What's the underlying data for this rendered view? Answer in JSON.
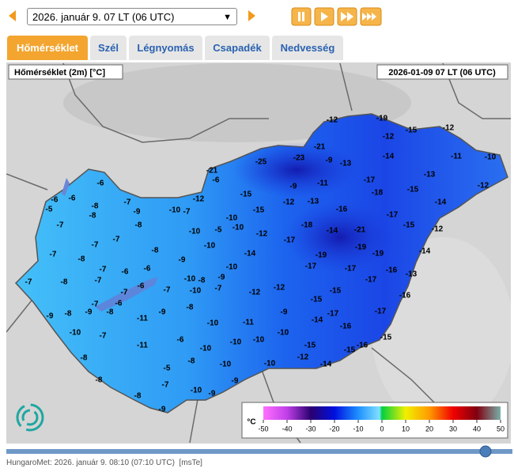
{
  "header": {
    "date_select": "2026. január 9. 07 LT (06  UTC)"
  },
  "tabs": [
    "Hőmérséklet",
    "Szél",
    "Légnyomás",
    "Csapadék",
    "Nedvesség"
  ],
  "map": {
    "parameter_label": "Hőmérséklet (2m) [°C]",
    "time_label": "2026-01-09 07 LT (06 UTC)",
    "temperature_labels": [
      -12,
      -19,
      -15,
      -12,
      -12,
      -21,
      -11,
      -10,
      -14,
      -25,
      -23,
      -9,
      -13,
      -21,
      -13,
      -6,
      -6,
      -11,
      -17,
      -12,
      -9,
      -15,
      -18,
      -15,
      -6,
      -6,
      -7,
      -12,
      -12,
      -13,
      -5,
      -8,
      -9,
      -10,
      -7,
      -15,
      -16,
      -14,
      -8,
      -10,
      -17,
      -7,
      -8,
      -10,
      -5,
      -10,
      -18,
      -21,
      -14,
      -15,
      -12,
      -12,
      -17,
      -7,
      -10,
      -7,
      -7,
      -8,
      -19,
      -19,
      -14,
      -14,
      -19,
      -8,
      -9,
      -17,
      -10,
      -17,
      -13,
      -16,
      -7,
      -6,
      -6,
      -10,
      -9,
      -17,
      -7,
      -8,
      -7,
      -6,
      -8,
      -10,
      -7,
      -7,
      -12,
      -12,
      -15,
      -16,
      -7,
      -15,
      -6,
      -7,
      -9,
      -8,
      -9,
      -8,
      -9,
      -8,
      -9,
      -17,
      -17,
      -11,
      -10,
      -11,
      -14,
      -16,
      -10,
      -7,
      -10,
      -15,
      -10,
      -10,
      -6,
      -11,
      -10,
      -15,
      -16,
      -15,
      -8,
      -8,
      -12,
      -10,
      -10,
      -14,
      -5,
      -8,
      -7,
      -9,
      -10,
      -9,
      -8,
      -9
    ]
  },
  "legend": {
    "unit": "°C",
    "ticks": [
      -50,
      -40,
      -30,
      -20,
      -10,
      0,
      10,
      20,
      30,
      40,
      50
    ]
  },
  "footer": {
    "source": "HungaroMet: 2026. január 9. 08:10 (07:10  UTC)",
    "link": "[msTe]"
  }
}
